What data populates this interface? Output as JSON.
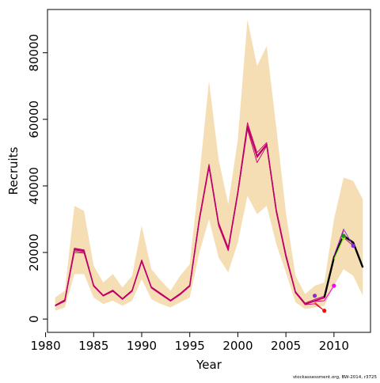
{
  "chart_data": {
    "type": "line",
    "title": "",
    "xlabel": "Year",
    "ylabel": "Recruits",
    "xlim": [
      1980.2,
      2013.8
    ],
    "ylim": [
      -4000,
      93000
    ],
    "x_ticks": [
      1980,
      1985,
      1990,
      1995,
      2000,
      2005,
      2010
    ],
    "y_ticks": [
      0,
      20000,
      40000,
      60000,
      80000
    ],
    "grid": false,
    "legend": "none",
    "footer": "stockassessment.org, BW-2014, r3725",
    "colors": {
      "band": "#f5deb3",
      "main": "#000000",
      "retro": "#c0006a",
      "peel_1": "#ee1111",
      "peel_2": "#ff00ff",
      "peel_3": "#8a2be2",
      "peel_4": "#7fff00",
      "peel_5": "#228b22"
    },
    "band": {
      "x": [
        1981,
        1982,
        1983,
        1984,
        1985,
        1986,
        1987,
        1988,
        1989,
        1990,
        1991,
        1992,
        1993,
        1994,
        1995,
        1996,
        1997,
        1998,
        1999,
        2000,
        2001,
        2002,
        2003,
        2004,
        2005,
        2006,
        2007,
        2008,
        2009,
        2010,
        2011,
        2012,
        2013
      ],
      "lower": [
        2500,
        3500,
        13500,
        13500,
        6500,
        4500,
        5500,
        4000,
        5500,
        12000,
        6000,
        4500,
        3500,
        5000,
        6500,
        20000,
        30000,
        18500,
        14000,
        23000,
        37000,
        31500,
        34000,
        22500,
        14000,
        5000,
        3000,
        3500,
        4000,
        10000,
        15000,
        13000,
        7000
      ],
      "upper": [
        6500,
        8500,
        34000,
        32500,
        16000,
        11000,
        13500,
        9500,
        13000,
        28000,
        15000,
        11500,
        8500,
        13000,
        16500,
        43000,
        71500,
        48000,
        34500,
        54000,
        90000,
        76000,
        82000,
        57500,
        32000,
        13000,
        7500,
        10000,
        11000,
        30000,
        42500,
        41500,
        36000
      ]
    },
    "series": [
      {
        "key": "estimate",
        "x": [
          1981,
          1982,
          1983,
          1984,
          1985,
          1986,
          1987,
          1988,
          1989,
          1990,
          1991,
          1992,
          1993,
          1994,
          1995,
          1996,
          1997,
          1998,
          1999,
          2000,
          2001,
          2002,
          2003,
          2004,
          2005,
          2006,
          2007,
          2008,
          2009,
          2010,
          2011,
          2012,
          2013
        ],
        "values": [
          4000,
          5500,
          21000,
          20500,
          10000,
          7000,
          8500,
          6000,
          8500,
          17500,
          9500,
          7500,
          5500,
          7500,
          10000,
          30000,
          46000,
          28500,
          21000,
          38000,
          58000,
          49000,
          52500,
          32500,
          19000,
          8000,
          4500,
          5500,
          6500,
          18500,
          25000,
          23000,
          15500
        ]
      },
      {
        "key": "retro_2012",
        "x": [
          1981,
          1982,
          1983,
          1984,
          1985,
          1986,
          1987,
          1988,
          1989,
          1990,
          1991,
          1992,
          1993,
          1994,
          1995,
          1996,
          1997,
          1998,
          1999,
          2000,
          2001,
          2002,
          2003,
          2004,
          2005,
          2006,
          2007,
          2008,
          2009,
          2010,
          2011,
          2012
        ],
        "values": [
          4200,
          5800,
          21300,
          20800,
          10200,
          7200,
          8700,
          6200,
          8700,
          17800,
          9700,
          7700,
          5700,
          7700,
          10200,
          30500,
          46500,
          29000,
          21500,
          38500,
          59000,
          50000,
          53000,
          33000,
          19500,
          8300,
          4800,
          5900,
          6900,
          18000,
          24500,
          22000
        ]
      },
      {
        "key": "retro_2011",
        "x": [
          1981,
          1982,
          1983,
          1984,
          1985,
          1986,
          1987,
          1988,
          1989,
          1990,
          1991,
          1992,
          1993,
          1994,
          1995,
          1996,
          1997,
          1998,
          1999,
          2000,
          2001,
          2002,
          2003,
          2004,
          2005,
          2006,
          2007,
          2008,
          2009,
          2010,
          2011
        ],
        "values": [
          3900,
          5300,
          20500,
          20000,
          9800,
          6900,
          8300,
          5900,
          8300,
          17200,
          9300,
          7300,
          5400,
          7300,
          9800,
          29500,
          45500,
          28000,
          20500,
          37500,
          57000,
          47000,
          52000,
          32000,
          18500,
          7800,
          4400,
          5400,
          6300,
          19000,
          26500
        ]
      },
      {
        "key": "retro_2010",
        "x": [
          1981,
          1982,
          1983,
          1984,
          1985,
          1986,
          1987,
          1988,
          1989,
          1990,
          1991,
          1992,
          1993,
          1994,
          1995,
          1996,
          1997,
          1998,
          1999,
          2000,
          2001,
          2002,
          2003,
          2004,
          2005,
          2006,
          2007,
          2008,
          2009,
          2010
        ],
        "values": [
          4100,
          5600,
          20000,
          19800,
          9900,
          7000,
          8400,
          6100,
          8400,
          17300,
          9400,
          7400,
          5500,
          7400,
          9900,
          29800,
          45800,
          28300,
          20800,
          37800,
          57500,
          48500,
          52200,
          32300,
          18800,
          7900,
          4400,
          5300,
          5500,
          10000
        ]
      },
      {
        "key": "retro_2009",
        "x": [
          1981,
          1982,
          1983,
          1984,
          1985,
          1986,
          1987,
          1988,
          1989,
          1990,
          1991,
          1992,
          1993,
          1994,
          1995,
          1996,
          1997,
          1998,
          1999,
          2000,
          2001,
          2002,
          2003,
          2004,
          2005,
          2006,
          2007,
          2008,
          2009
        ],
        "values": [
          4050,
          5450,
          20800,
          20300,
          10050,
          7050,
          8450,
          6050,
          8450,
          17400,
          9450,
          7450,
          5450,
          7450,
          9950,
          29900,
          45900,
          28400,
          20900,
          37900,
          57800,
          48800,
          52400,
          32400,
          18900,
          7950,
          4300,
          4600,
          2500
        ]
      }
    ],
    "endpoints": [
      {
        "x": 2009,
        "y": 2500,
        "key": "peel_1"
      },
      {
        "x": 2010,
        "y": 10000,
        "key": "peel_2"
      },
      {
        "x": 2008,
        "y": 7000,
        "key": "peel_3"
      },
      {
        "x": 2012,
        "y": 22000,
        "key": "peel_3"
      },
      {
        "x": 2011,
        "y": 24500,
        "key": "peel_4"
      },
      {
        "x": 2011,
        "y": 25000,
        "key": "peel_5"
      }
    ]
  }
}
